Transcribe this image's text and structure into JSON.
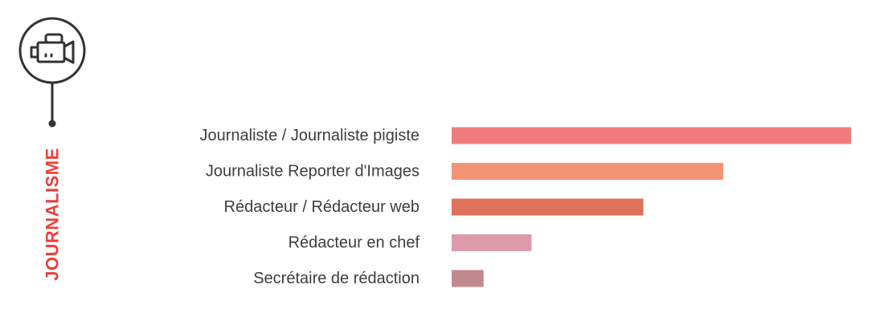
{
  "section": {
    "title": "JOURNALISME",
    "title_color": "#e8413b",
    "icon": "video-camera-icon",
    "outline_color": "#333333"
  },
  "chart_data": {
    "type": "bar",
    "orientation": "horizontal",
    "title": "",
    "xlabel": "",
    "ylabel": "",
    "axes_visible": false,
    "grid": false,
    "legend": "none",
    "xlim": [
      0,
      100
    ],
    "categories": [
      "Journaliste / Journaliste pigiste",
      "Journaliste Reporter d'Images",
      "Rédacteur / Rédacteur web",
      "Rédacteur en chef",
      "Secrétaire de rédaction"
    ],
    "values": [
      100,
      68,
      48,
      20,
      8
    ],
    "colors": [
      "#ef7b7b",
      "#f29475",
      "#df715d",
      "#dc9aab",
      "#c2898c"
    ]
  }
}
